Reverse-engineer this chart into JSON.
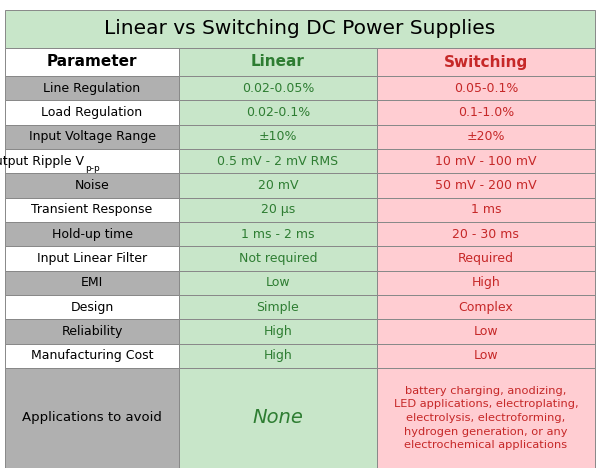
{
  "title": "Linear vs Switching DC Power Supplies",
  "headers": [
    "Parameter",
    "Linear",
    "Switching"
  ],
  "rows": [
    [
      "Line Regulation",
      "0.02-0.05%",
      "0.05-0.1%"
    ],
    [
      "Load Regulation",
      "0.02-0.1%",
      "0.1-1.0%"
    ],
    [
      "Input Voltage Range",
      "±10%",
      "±20%"
    ],
    [
      "Output Ripple Vp-p",
      "0.5 mV - 2 mV RMS",
      "10 mV - 100 mV"
    ],
    [
      "Noise",
      "20 mV",
      "50 mV - 200 mV"
    ],
    [
      "Transient Response",
      "20 μs",
      "1 ms"
    ],
    [
      "Hold-up time",
      "1 ms - 2 ms",
      "20 - 30 ms"
    ],
    [
      "Input Linear Filter",
      "Not required",
      "Required"
    ],
    [
      "EMI",
      "Low",
      "High"
    ],
    [
      "Design",
      "Simple",
      "Complex"
    ],
    [
      "Reliability",
      "High",
      "Low"
    ],
    [
      "Manufacturing Cost",
      "High",
      "Low"
    ],
    [
      "Applications to avoid",
      "None",
      "battery charging, anodizing,\nLED applications, electroplating,\nelectrolysis, electroforming,\nhydrogen generation, or any\nelectrochemical applications"
    ]
  ],
  "title_bg": "#c8e6c9",
  "header_param_bg": "#ffffff",
  "header_linear_bg": "#c8e6c9",
  "header_switching_bg": "#ffcdd2",
  "linear_col_bg": "#c8e6c9",
  "switching_col_bg": "#ffcdd2",
  "app_row_bg": "#b0b0b0",
  "app_linear_bg": "#c8e6c9",
  "app_switching_bg": "#ffcdd2",
  "param_text_color": "#000000",
  "linear_text_color": "#2e7d32",
  "switching_text_color": "#c62828",
  "header_param_text": "#000000",
  "header_linear_text": "#2e7d32",
  "header_switching_text": "#c62828",
  "border_color": "#888888",
  "title_text_color": "#000000",
  "row_bgs_param": [
    "#b0b0b0",
    "#ffffff",
    "#b0b0b0",
    "#ffffff",
    "#b0b0b0",
    "#ffffff",
    "#b0b0b0",
    "#ffffff",
    "#b0b0b0",
    "#ffffff",
    "#b0b0b0",
    "#ffffff"
  ]
}
